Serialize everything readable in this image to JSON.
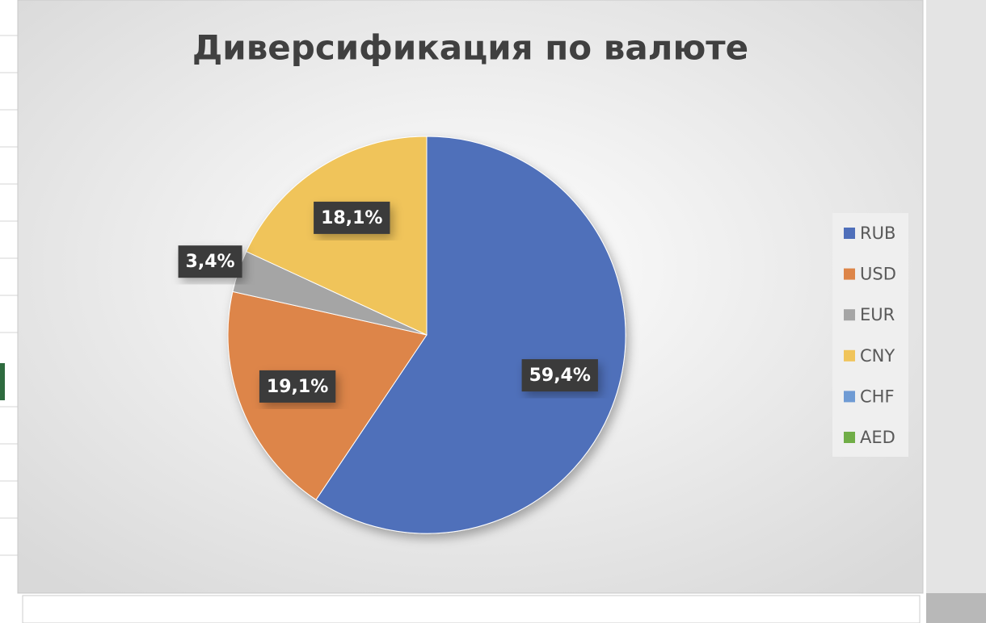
{
  "chart_data": {
    "type": "pie",
    "title": "Диверсификация по валюте",
    "categories": [
      "RUB",
      "USD",
      "EUR",
      "CNY",
      "CHF",
      "AED"
    ],
    "values": [
      59.4,
      19.1,
      3.4,
      18.1,
      0,
      0
    ],
    "value_labels": [
      "59,4%",
      "19,1%",
      "3,4%",
      "18,1%",
      null,
      null
    ],
    "colors": [
      "#4f6fba",
      "#dd8548",
      "#a5a5a5",
      "#f0c45a",
      "#6f9bd4",
      "#70ad47"
    ],
    "legend": "right"
  }
}
